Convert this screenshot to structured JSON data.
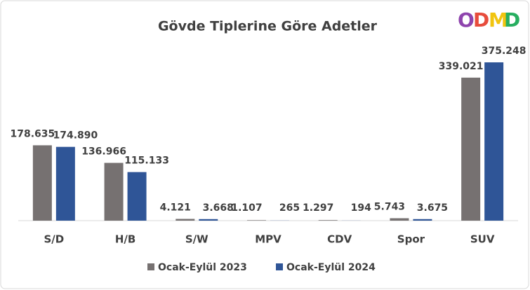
{
  "chart_data": {
    "type": "bar",
    "title": "Gövde Tiplerine Göre Adetler",
    "logo": [
      "O",
      "D",
      "M",
      "D"
    ],
    "categories": [
      "S/D",
      "H/B",
      "S/W",
      "MPV",
      "CDV",
      "Spor",
      "SUV"
    ],
    "series": [
      {
        "name": "Ocak-Eylül 2023",
        "color": "#767171",
        "values": [
          178635,
          136966,
          4121,
          1107,
          1297,
          5743,
          339021
        ],
        "value_labels": [
          "178.635",
          "136.966",
          "4.121",
          "1.107",
          "1.297",
          "5.743",
          "339.021"
        ]
      },
      {
        "name": "Ocak-Eylül 2024",
        "color": "#2f5597",
        "values": [
          174890,
          115133,
          3668,
          265,
          194,
          3675,
          375248
        ],
        "value_labels": [
          "174.890",
          "115.133",
          "3.668",
          "265",
          "194",
          "3.675",
          "375.248"
        ]
      }
    ],
    "legend": "bottom"
  }
}
